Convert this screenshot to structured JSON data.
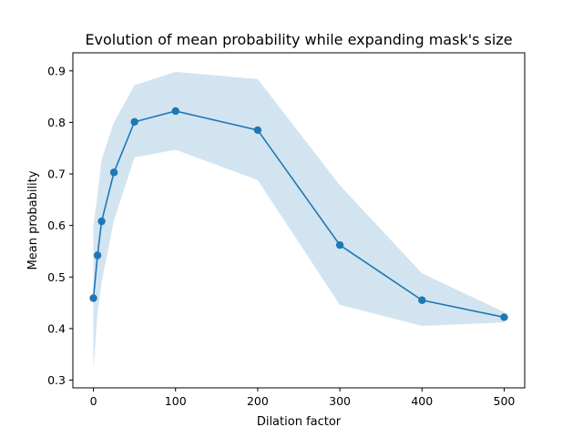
{
  "chart_data": {
    "type": "line",
    "title": "Evolution of mean probability while expanding mask's size",
    "xlabel": "Dilation factor",
    "ylabel": "Mean probability",
    "xlim": [
      -25,
      525
    ],
    "ylim": [
      0.285,
      0.935
    ],
    "x_ticks": [
      0,
      100,
      200,
      300,
      400,
      500
    ],
    "y_ticks": [
      0.3,
      0.4,
      0.5,
      0.6,
      0.7,
      0.8,
      0.9
    ],
    "grid": false,
    "line_color": "#1f77b4",
    "band_color": "#1f77b4",
    "x": [
      0,
      5,
      10,
      25,
      50,
      100,
      200,
      300,
      400,
      500
    ],
    "series": [
      {
        "values": [
          0.459,
          0.542,
          0.608,
          0.703,
          0.801,
          0.822,
          0.785,
          0.562,
          0.455,
          0.422
        ],
        "lower": [
          0.32,
          0.43,
          0.49,
          0.61,
          0.732,
          0.747,
          0.688,
          0.446,
          0.405,
          0.412
        ],
        "upper": [
          0.6,
          0.66,
          0.728,
          0.8,
          0.872,
          0.898,
          0.884,
          0.678,
          0.507,
          0.432
        ]
      }
    ]
  }
}
